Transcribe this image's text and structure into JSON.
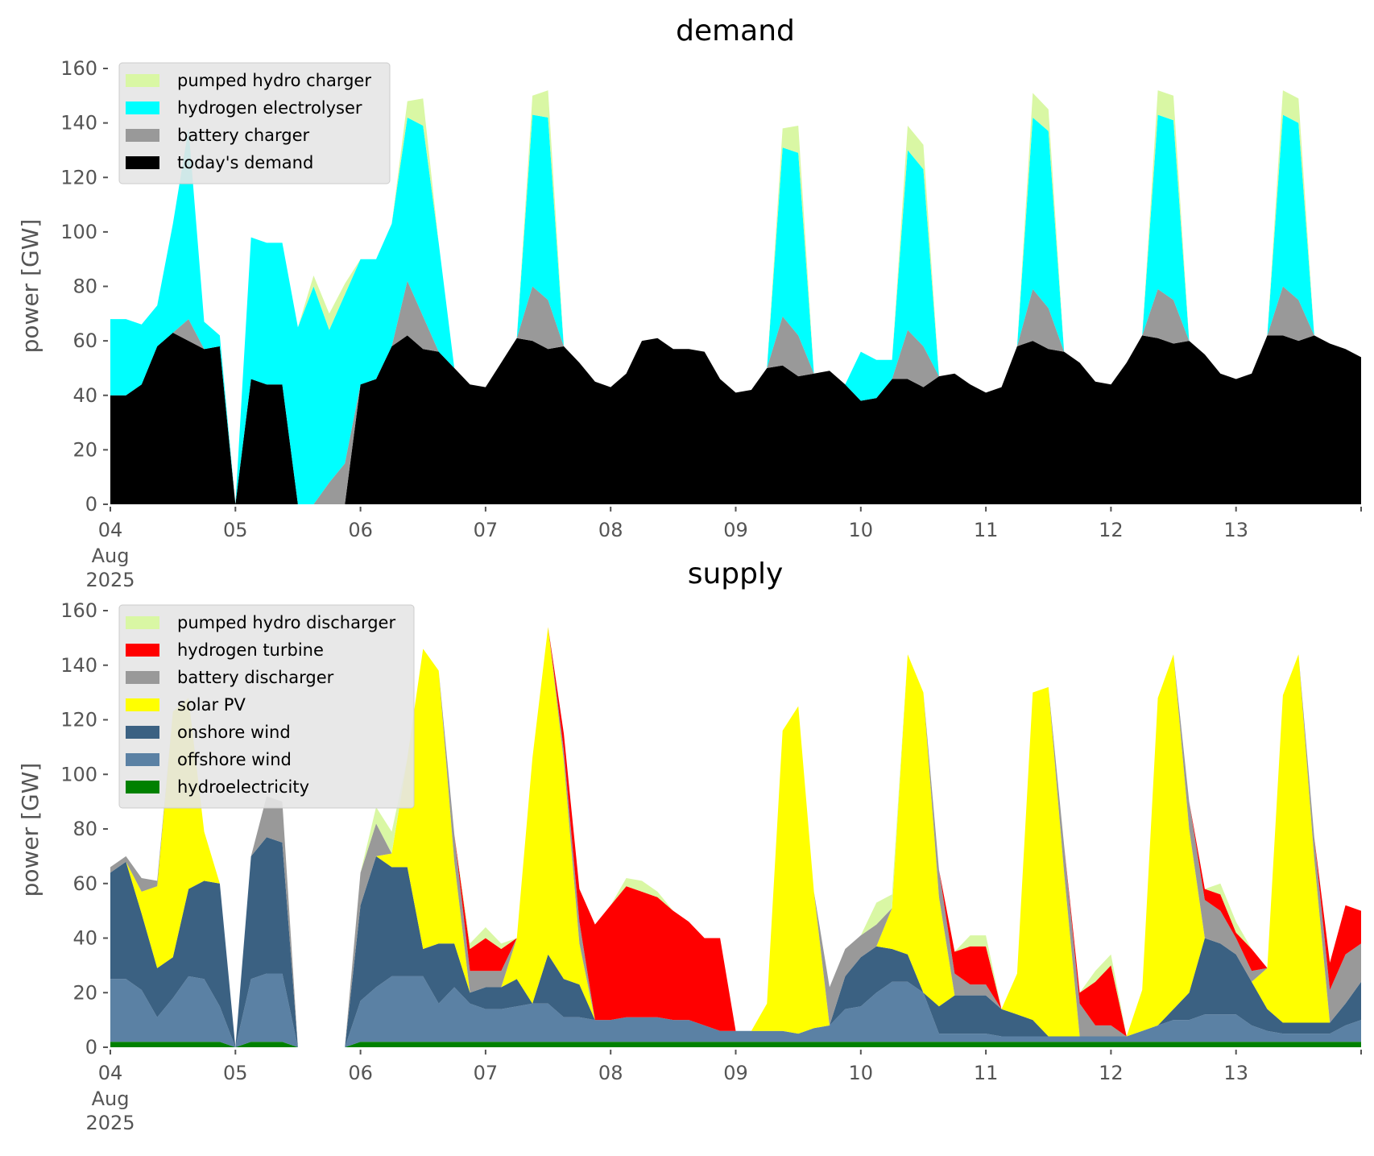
{
  "chart_data": [
    {
      "type": "area",
      "stacked": true,
      "title": "demand",
      "xlabel": "",
      "ylabel": "power [GW]",
      "ylim": [
        0,
        160
      ],
      "xlim": [
        "2025-08-04T00:00",
        "2025-08-14T00:00"
      ],
      "yticks": [
        "0",
        "20",
        "40",
        "60",
        "80",
        "100",
        "120",
        "140",
        "160"
      ],
      "xticks": [
        {
          "label": "04",
          "sublabel": "Aug",
          "sublabel2": "2025",
          "day": 0
        },
        {
          "label": "05",
          "day": 1
        },
        {
          "label": "06",
          "day": 2
        },
        {
          "label": "07",
          "day": 3
        },
        {
          "label": "08",
          "day": 4
        },
        {
          "label": "09",
          "day": 5
        },
        {
          "label": "10",
          "day": 6
        },
        {
          "label": "11",
          "day": 7
        },
        {
          "label": "12",
          "day": 8
        },
        {
          "label": "13",
          "day": 9
        }
      ],
      "grid": false,
      "legend_position": "top-left",
      "x_step_hours": 3,
      "series": [
        {
          "name": "today's demand",
          "color": "#000000",
          "values": [
            40,
            40,
            44,
            58,
            63,
            60,
            57,
            58,
            0,
            46,
            44,
            44,
            0,
            0,
            0,
            0,
            44,
            46,
            58,
            62,
            57,
            56,
            50,
            44,
            43,
            52,
            61,
            60,
            57,
            58,
            52,
            45,
            43,
            48,
            60,
            61,
            57,
            57,
            56,
            46,
            41,
            42,
            50,
            51,
            47,
            48,
            49,
            44,
            38,
            39,
            46,
            46,
            43,
            47,
            48,
            44,
            41,
            43,
            58,
            60,
            57,
            56,
            52,
            45,
            44,
            52,
            62,
            61,
            59,
            60,
            55,
            48,
            46,
            48,
            62,
            62,
            60,
            62,
            59,
            57,
            54
          ]
        },
        {
          "name": "battery charger",
          "color": "#999999",
          "values": [
            0,
            0,
            0,
            0,
            0,
            8,
            0,
            0,
            0,
            0,
            0,
            0,
            0,
            0,
            8,
            15,
            0,
            0,
            0,
            20,
            12,
            0,
            0,
            0,
            0,
            0,
            0,
            20,
            18,
            0,
            0,
            0,
            0,
            0,
            0,
            0,
            0,
            0,
            0,
            0,
            0,
            0,
            0,
            18,
            15,
            0,
            0,
            0,
            0,
            0,
            0,
            18,
            15,
            0,
            0,
            0,
            0,
            0,
            0,
            19,
            15,
            0,
            0,
            0,
            0,
            0,
            0,
            18,
            16,
            0,
            0,
            0,
            0,
            0,
            0,
            18,
            15,
            0,
            0,
            0,
            0
          ]
        },
        {
          "name": "hydrogen electrolyser",
          "color": "#00ffff",
          "values": [
            28,
            28,
            22,
            15,
            40,
            70,
            10,
            4,
            0,
            52,
            52,
            52,
            65,
            80,
            56,
            62,
            46,
            44,
            45,
            60,
            70,
            40,
            0,
            0,
            0,
            0,
            0,
            63,
            67,
            0,
            0,
            0,
            0,
            0,
            0,
            0,
            0,
            0,
            0,
            0,
            0,
            0,
            0,
            62,
            67,
            0,
            0,
            0,
            18,
            14,
            7,
            66,
            65,
            0,
            0,
            0,
            0,
            0,
            0,
            63,
            65,
            0,
            0,
            0,
            0,
            0,
            0,
            64,
            66,
            0,
            0,
            0,
            0,
            0,
            0,
            63,
            65,
            0,
            0,
            0,
            0
          ]
        },
        {
          "name": "pumped hydro charger",
          "color": "#d9f7a4",
          "values": [
            0,
            0,
            0,
            0,
            0,
            0,
            0,
            0,
            0,
            0,
            0,
            0,
            0,
            4,
            6,
            4,
            0,
            0,
            0,
            6,
            10,
            0,
            0,
            0,
            0,
            0,
            0,
            7,
            10,
            0,
            0,
            0,
            0,
            0,
            0,
            0,
            0,
            0,
            0,
            0,
            0,
            0,
            0,
            7,
            10,
            0,
            0,
            0,
            0,
            0,
            0,
            9,
            9,
            0,
            0,
            0,
            0,
            0,
            0,
            9,
            8,
            0,
            0,
            0,
            0,
            0,
            0,
            9,
            9,
            0,
            0,
            0,
            0,
            0,
            0,
            9,
            9,
            0,
            0,
            0,
            0
          ]
        }
      ]
    },
    {
      "type": "area",
      "stacked": true,
      "title": "supply",
      "xlabel": "",
      "ylabel": "power [GW]",
      "ylim": [
        0,
        160
      ],
      "xlim": [
        "2025-08-04T00:00",
        "2025-08-14T00:00"
      ],
      "yticks": [
        "0",
        "20",
        "40",
        "60",
        "80",
        "100",
        "120",
        "140",
        "160"
      ],
      "xticks": [
        {
          "label": "04",
          "sublabel": "Aug",
          "sublabel2": "2025",
          "day": 0
        },
        {
          "label": "05",
          "day": 1
        },
        {
          "label": "06",
          "day": 2
        },
        {
          "label": "07",
          "day": 3
        },
        {
          "label": "08",
          "day": 4
        },
        {
          "label": "09",
          "day": 5
        },
        {
          "label": "10",
          "day": 6
        },
        {
          "label": "11",
          "day": 7
        },
        {
          "label": "12",
          "day": 8
        },
        {
          "label": "13",
          "day": 9
        }
      ],
      "grid": false,
      "legend_position": "top-left",
      "x_step_hours": 3,
      "series": [
        {
          "name": "hydroelectricity",
          "color": "#008000",
          "values": [
            2,
            2,
            2,
            2,
            2,
            2,
            2,
            2,
            0,
            2,
            2,
            2,
            0,
            0,
            0,
            0,
            2,
            2,
            2,
            2,
            2,
            2,
            2,
            2,
            2,
            2,
            2,
            2,
            2,
            2,
            2,
            2,
            2,
            2,
            2,
            2,
            2,
            2,
            2,
            2,
            2,
            2,
            2,
            2,
            2,
            2,
            2,
            2,
            2,
            2,
            2,
            2,
            2,
            2,
            2,
            2,
            2,
            2,
            2,
            2,
            2,
            2,
            2,
            2,
            2,
            2,
            2,
            2,
            2,
            2,
            2,
            2,
            2,
            2,
            2,
            2,
            2,
            2,
            2,
            2,
            2
          ]
        },
        {
          "name": "offshore wind",
          "color": "#5b81a4",
          "values": [
            23,
            23,
            19,
            9,
            16,
            24,
            23,
            13,
            0,
            23,
            25,
            25,
            0,
            0,
            0,
            0,
            15,
            20,
            24,
            24,
            24,
            14,
            20,
            14,
            12,
            12,
            13,
            14,
            14,
            9,
            9,
            8,
            8,
            9,
            9,
            9,
            8,
            8,
            6,
            4,
            4,
            4,
            4,
            4,
            3,
            5,
            6,
            12,
            13,
            18,
            22,
            22,
            18,
            3,
            3,
            3,
            3,
            2,
            2,
            2,
            2,
            2,
            2,
            2,
            2,
            2,
            4,
            6,
            8,
            8,
            10,
            10,
            10,
            6,
            4,
            3,
            3,
            3,
            3,
            6,
            8
          ]
        },
        {
          "name": "onshore wind",
          "color": "#3b6182",
          "values": [
            39,
            43,
            28,
            18,
            15,
            32,
            36,
            45,
            0,
            45,
            50,
            48,
            0,
            0,
            0,
            0,
            35,
            48,
            40,
            40,
            10,
            22,
            16,
            4,
            8,
            8,
            10,
            0,
            18,
            14,
            12,
            0,
            0,
            0,
            0,
            0,
            0,
            0,
            0,
            0,
            0,
            0,
            0,
            0,
            0,
            0,
            0,
            12,
            18,
            17,
            12,
            10,
            0,
            10,
            14,
            14,
            14,
            10,
            8,
            6,
            0,
            0,
            0,
            0,
            0,
            0,
            0,
            0,
            4,
            10,
            28,
            26,
            22,
            16,
            8,
            4,
            4,
            4,
            4,
            8,
            14
          ]
        },
        {
          "name": "solar PV",
          "color": "#ffff00",
          "values": [
            0,
            0,
            8,
            30,
            90,
            70,
            18,
            0,
            0,
            0,
            0,
            0,
            0,
            0,
            0,
            0,
            0,
            0,
            5,
            40,
            110,
            100,
            30,
            0,
            0,
            0,
            15,
            90,
            120,
            80,
            15,
            0,
            0,
            0,
            0,
            0,
            0,
            0,
            0,
            0,
            0,
            0,
            10,
            110,
            120,
            50,
            0,
            0,
            0,
            0,
            15,
            110,
            110,
            40,
            0,
            0,
            0,
            0,
            15,
            120,
            128,
            60,
            0,
            0,
            0,
            0,
            15,
            120,
            130,
            60,
            0,
            0,
            0,
            0,
            15,
            120,
            135,
            60,
            0,
            0,
            0
          ]
        },
        {
          "name": "battery discharger",
          "color": "#999999",
          "values": [
            2,
            2,
            5,
            2,
            0,
            0,
            0,
            0,
            0,
            0,
            15,
            15,
            0,
            0,
            0,
            0,
            12,
            12,
            0,
            0,
            0,
            0,
            10,
            8,
            6,
            6,
            0,
            0,
            0,
            4,
            8,
            0,
            0,
            0,
            0,
            0,
            0,
            0,
            0,
            0,
            0,
            0,
            0,
            0,
            0,
            0,
            14,
            10,
            8,
            8,
            0,
            0,
            0,
            10,
            8,
            4,
            4,
            0,
            0,
            0,
            0,
            10,
            12,
            4,
            4,
            0,
            0,
            0,
            0,
            10,
            14,
            12,
            6,
            4,
            0,
            0,
            0,
            8,
            12,
            18,
            14
          ]
        },
        {
          "name": "hydrogen turbine",
          "color": "#ff0000",
          "values": [
            0,
            0,
            0,
            0,
            0,
            0,
            0,
            0,
            0,
            0,
            0,
            0,
            0,
            0,
            0,
            0,
            0,
            0,
            0,
            0,
            0,
            0,
            0,
            8,
            12,
            8,
            0,
            0,
            0,
            6,
            12,
            35,
            42,
            48,
            46,
            44,
            40,
            36,
            32,
            34,
            0,
            0,
            0,
            0,
            0,
            0,
            0,
            0,
            0,
            0,
            0,
            0,
            0,
            0,
            8,
            14,
            14,
            0,
            0,
            0,
            0,
            0,
            4,
            16,
            22,
            0,
            0,
            0,
            0,
            0,
            4,
            6,
            2,
            8,
            0,
            0,
            0,
            0,
            10,
            18,
            12
          ]
        },
        {
          "name": "pumped hydro discharger",
          "color": "#d9f7a4",
          "values": [
            0,
            0,
            0,
            0,
            0,
            0,
            0,
            0,
            0,
            0,
            0,
            0,
            0,
            0,
            0,
            0,
            0,
            6,
            8,
            0,
            0,
            0,
            0,
            2,
            4,
            2,
            0,
            0,
            0,
            0,
            0,
            0,
            0,
            3,
            4,
            2,
            0,
            0,
            0,
            0,
            0,
            0,
            0,
            0,
            0,
            0,
            0,
            0,
            0,
            8,
            5,
            0,
            0,
            0,
            0,
            4,
            4,
            0,
            0,
            0,
            0,
            0,
            0,
            4,
            4,
            0,
            0,
            0,
            0,
            0,
            0,
            4,
            4,
            0,
            0,
            0,
            0,
            0,
            0,
            0,
            0
          ]
        }
      ]
    }
  ],
  "legend_order": {
    "demand": [
      "pumped hydro charger",
      "hydrogen electrolyser",
      "battery charger",
      "today's demand"
    ],
    "supply": [
      "pumped hydro discharger",
      "hydrogen turbine",
      "battery discharger",
      "solar PV",
      "onshore wind",
      "offshore wind",
      "hydroelectricity"
    ]
  }
}
